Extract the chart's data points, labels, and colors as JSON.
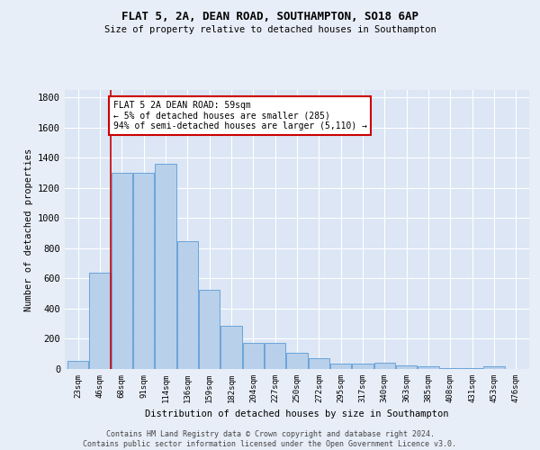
{
  "title": "FLAT 5, 2A, DEAN ROAD, SOUTHAMPTON, SO18 6AP",
  "subtitle": "Size of property relative to detached houses in Southampton",
  "xlabel": "Distribution of detached houses by size in Southampton",
  "ylabel": "Number of detached properties",
  "bar_color": "#b8d0ea",
  "bar_edge_color": "#5b9bd5",
  "background_color": "#dce6f5",
  "grid_color": "#ffffff",
  "fig_background": "#e8eef8",
  "categories": [
    "23sqm",
    "46sqm",
    "68sqm",
    "91sqm",
    "114sqm",
    "136sqm",
    "159sqm",
    "182sqm",
    "204sqm",
    "227sqm",
    "250sqm",
    "272sqm",
    "295sqm",
    "317sqm",
    "340sqm",
    "363sqm",
    "385sqm",
    "408sqm",
    "431sqm",
    "453sqm",
    "476sqm"
  ],
  "values": [
    55,
    640,
    1300,
    1300,
    1360,
    845,
    525,
    285,
    175,
    175,
    110,
    70,
    35,
    35,
    40,
    22,
    15,
    5,
    5,
    15,
    0
  ],
  "vline_x": 1.5,
  "vline_color": "#cc0000",
  "annotation_text": "FLAT 5 2A DEAN ROAD: 59sqm\n← 5% of detached houses are smaller (285)\n94% of semi-detached houses are larger (5,110) →",
  "annotation_box_color": "#ffffff",
  "annotation_box_edge": "#cc0000",
  "ylim": [
    0,
    1850
  ],
  "footer": "Contains HM Land Registry data © Crown copyright and database right 2024.\nContains public sector information licensed under the Open Government Licence v3.0.",
  "yticks": [
    0,
    200,
    400,
    600,
    800,
    1000,
    1200,
    1400,
    1600,
    1800
  ]
}
